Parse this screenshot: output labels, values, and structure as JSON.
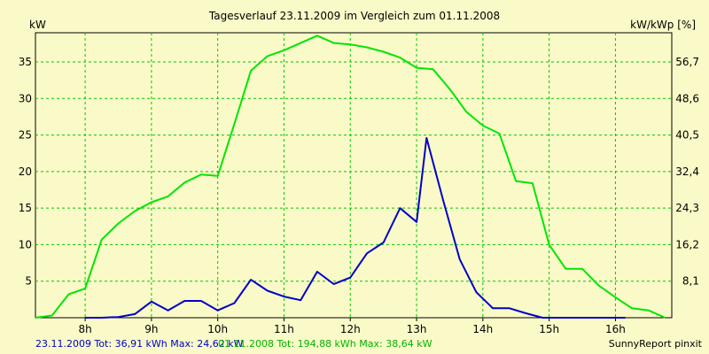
{
  "chart_data": {
    "type": "line",
    "title": "Tagesverlauf 23.11.2009 im Vergleich zum 01.11.2008",
    "y_left_label": "kW",
    "y_right_label": "kW/kWp [%]",
    "x_ticks": [
      {
        "value": 8,
        "label": "8h"
      },
      {
        "value": 9,
        "label": "9h"
      },
      {
        "value": 10,
        "label": "10h"
      },
      {
        "value": 11,
        "label": "11h"
      },
      {
        "value": 12,
        "label": "12h"
      },
      {
        "value": 13,
        "label": "13h"
      },
      {
        "value": 14,
        "label": "14h"
      },
      {
        "value": 15,
        "label": "15h"
      },
      {
        "value": 16,
        "label": "16h"
      }
    ],
    "y_left_ticks": [
      "5",
      "10",
      "15",
      "20",
      "25",
      "30",
      "35"
    ],
    "y_right_ticks": [
      "8,1",
      "16,2",
      "24,3",
      "32,4",
      "40,5",
      "48,6",
      "56,7"
    ],
    "xlim": [
      7.25,
      16.85
    ],
    "ylim": [
      0,
      39
    ],
    "grid": true,
    "series": [
      {
        "name": "23.11.2009",
        "color": "#0000c8",
        "x": [
          8.0,
          8.25,
          8.5,
          8.75,
          9.0,
          9.25,
          9.5,
          9.75,
          10.0,
          10.25,
          10.5,
          10.75,
          11.0,
          11.25,
          11.5,
          11.75,
          12.0,
          12.25,
          12.5,
          12.75,
          13.0,
          13.15,
          13.4,
          13.65,
          13.9,
          14.15,
          14.4,
          14.65,
          14.9,
          15.15,
          15.4,
          15.65,
          15.9,
          16.15
        ],
        "y": [
          0.0,
          0.0,
          0.1,
          0.5,
          2.2,
          1.0,
          2.3,
          2.3,
          1.0,
          2.0,
          5.2,
          3.7,
          2.9,
          2.4,
          6.3,
          4.6,
          5.5,
          8.8,
          10.3,
          15.0,
          13.1,
          24.6,
          16.1,
          8.0,
          3.5,
          1.3,
          1.3,
          0.6,
          0.0,
          0.0,
          0.0,
          0.0,
          0.0,
          0.0
        ]
      },
      {
        "name": "01.11.2008",
        "color": "#00e600",
        "x": [
          7.25,
          7.5,
          7.75,
          8.0,
          8.25,
          8.5,
          8.75,
          9.0,
          9.25,
          9.5,
          9.75,
          10.0,
          10.25,
          10.5,
          10.75,
          11.0,
          11.25,
          11.5,
          11.75,
          12.0,
          12.25,
          12.5,
          12.75,
          13.0,
          13.25,
          13.5,
          13.75,
          14.0,
          14.25,
          14.5,
          14.75,
          15.0,
          15.25,
          15.5,
          15.75,
          16.0,
          16.25,
          16.5,
          16.75
        ],
        "y": [
          0.0,
          0.3,
          3.2,
          4.0,
          10.7,
          12.9,
          14.6,
          15.8,
          16.6,
          18.5,
          19.6,
          19.4,
          26.5,
          33.8,
          35.8,
          36.6,
          37.6,
          38.6,
          37.6,
          37.4,
          37.0,
          36.4,
          35.6,
          34.2,
          34.0,
          31.3,
          28.2,
          26.3,
          25.2,
          18.7,
          18.4,
          10.0,
          6.7,
          6.7,
          4.4,
          2.8,
          1.3,
          1.0,
          0.0
        ]
      }
    ]
  },
  "footer": {
    "series1": "23.11.2009 Tot: 36,91 kWh Max: 24,62 kW",
    "series2": "01.11.2008 Tot: 194,88 kWh Max: 38,64 kW",
    "credit": "SunnyReport pinxit"
  }
}
